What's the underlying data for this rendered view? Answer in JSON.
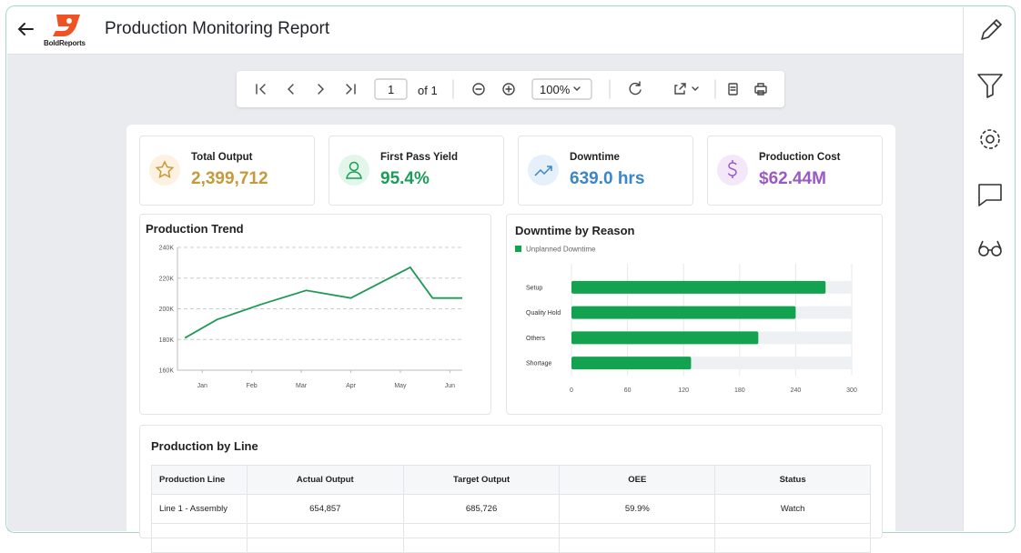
{
  "header": {
    "logo": "BoldReports",
    "title": "Production Monitoring Report"
  },
  "toolbar": {
    "page": "1",
    "page_count": "of 1",
    "zoom": "100%"
  },
  "kpis": [
    {
      "label": "Total Output",
      "value": "2,399,712"
    },
    {
      "label": "First Pass Yield",
      "value": "95.4%"
    },
    {
      "label": "Downtime",
      "value": "639.0 hrs"
    },
    {
      "label": "Production Cost",
      "value": "$62.44M"
    }
  ],
  "chart_data": [
    {
      "type": "line",
      "title": "Production Trend",
      "color": "#1f9a55",
      "x": [
        -0.35,
        0.3,
        1.2,
        2.1,
        3,
        4.2,
        4.65,
        5.25
      ],
      "values": [
        181000,
        193000,
        203000,
        212000,
        207000,
        227000,
        207000,
        207000
      ],
      "xlim": [
        -0.5,
        5.25
      ],
      "xticks": [
        {
          "value": 0,
          "label": "Jan"
        },
        {
          "value": 1,
          "label": "Feb"
        },
        {
          "value": 2,
          "label": "Mar"
        },
        {
          "value": 3,
          "label": "Apr"
        },
        {
          "value": 4,
          "label": "May"
        },
        {
          "value": 5,
          "label": "Jun"
        }
      ],
      "ylim": [
        160000,
        240000
      ],
      "yticks": [
        {
          "value": 160000,
          "label": "160K"
        },
        {
          "value": 180000,
          "label": "180K"
        },
        {
          "value": 200000,
          "label": "200K"
        },
        {
          "value": 220000,
          "label": "220K"
        },
        {
          "value": 240000,
          "label": "240K"
        }
      ],
      "grid": true
    },
    {
      "type": "bar",
      "orientation": "horizontal",
      "title": "Downtime by Reason",
      "categories": [
        "Setup",
        "Quality Hold",
        "Others",
        "Shortage"
      ],
      "series": [
        {
          "name": "Unplanned Downtime",
          "color": "#13a24f",
          "values": [
            272,
            240,
            200,
            128
          ]
        }
      ],
      "xlim": [
        0,
        300
      ],
      "xticks": [
        0,
        60,
        120,
        180,
        240,
        300
      ],
      "grid": true,
      "legend": "top-left"
    }
  ],
  "table": {
    "title": "Production by Line",
    "columns": [
      "Production Line",
      "Actual Output",
      "Target Output",
      "OEE",
      "Status"
    ],
    "rows": [
      [
        "Line 1 - Assembly",
        "654,857",
        "685,726",
        "59.9%",
        "Watch"
      ]
    ]
  }
}
